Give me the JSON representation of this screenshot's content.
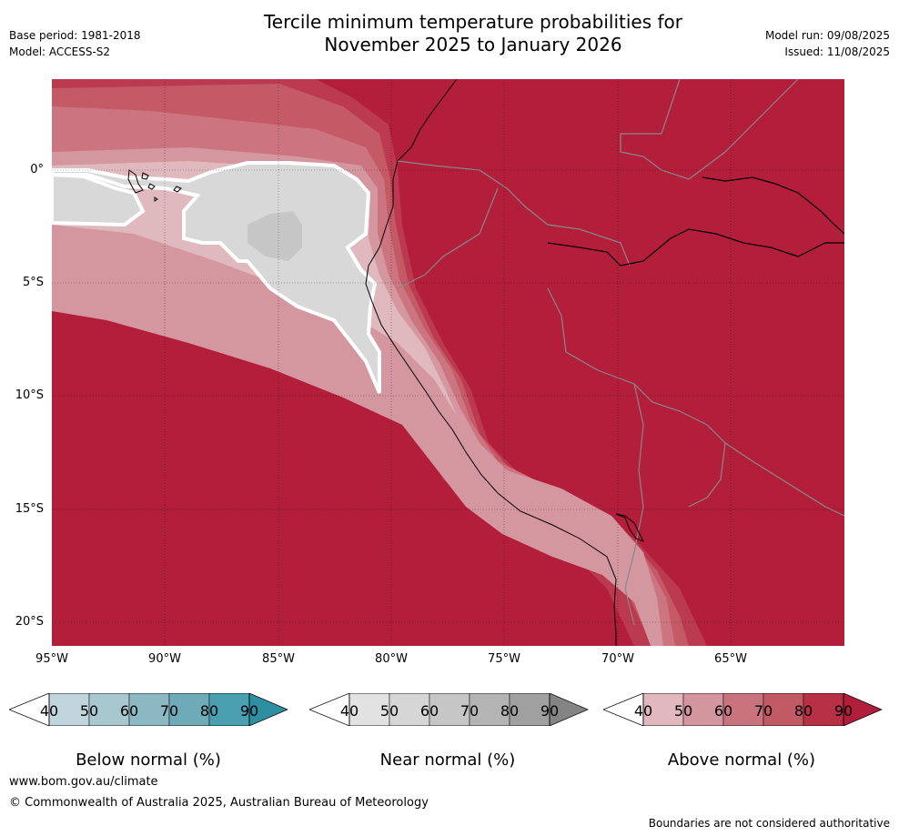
{
  "header": {
    "title_line1": "Tercile minimum temperature probabilities for",
    "title_line2": "November 2025 to January 2026",
    "base_period": "Base period: 1981-2018",
    "model": "Model: ACCESS-S2",
    "model_run": "Model run: 09/08/2025",
    "issued": "Issued: 11/08/2025"
  },
  "map": {
    "lat_labels": [
      "0°",
      "5°S",
      "10°S",
      "15°S",
      "20°S"
    ],
    "lon_labels": [
      "95°W",
      "90°W",
      "85°W",
      "80°W",
      "75°W",
      "70°W",
      "65°W"
    ],
    "lon_range": [
      -95,
      -60
    ],
    "lat_range": [
      -21,
      4
    ]
  },
  "legend": {
    "ticks": [
      "40",
      "50",
      "60",
      "70",
      "80",
      "90"
    ],
    "below": {
      "title": "Below normal (%)",
      "colors": [
        "#ffffff",
        "#c0d6dc",
        "#a8c8cf",
        "#8cb8c3",
        "#6eaab8",
        "#4aa0b1",
        "#2e8fa2"
      ]
    },
    "near": {
      "title": "Near normal (%)",
      "colors": [
        "#ffffff",
        "#e2e2e2",
        "#d6d6d6",
        "#c6c6c6",
        "#b4b4b4",
        "#a0a0a0",
        "#848484"
      ]
    },
    "above": {
      "title": "Above normal (%)",
      "colors": [
        "#ffffff",
        "#e0b8bd",
        "#d4969e",
        "#c9737e",
        "#c25a66",
        "#b73045",
        "#b01e3b"
      ]
    }
  },
  "footer": {
    "url": "www.bom.gov.au/climate",
    "copyright": "© Commonwealth of Australia 2025, Australian Bureau of Meteorology",
    "disclaimer": "Boundaries are not considered authoritative"
  }
}
